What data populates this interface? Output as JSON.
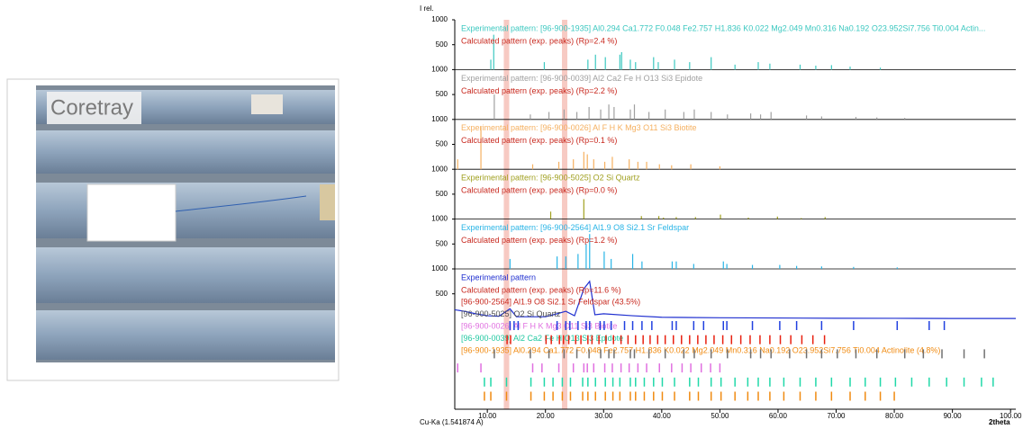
{
  "photo": {
    "label": "Coretray"
  },
  "chart_data": {
    "type": "xrd",
    "y_label": "I rel.",
    "x_label": "2theta",
    "source_label": "Cu-Ka (1.541874 A)",
    "xlim": [
      4.4,
      100.9
    ],
    "xticks": [
      {
        "value": 10,
        "label": "10.00"
      },
      {
        "value": 20,
        "label": "20.00"
      },
      {
        "value": 30,
        "label": "30.00"
      },
      {
        "value": 40,
        "label": "40.00"
      },
      {
        "value": 50,
        "label": "50.00"
      },
      {
        "value": 60,
        "label": "60.00"
      },
      {
        "value": 70,
        "label": "70.00"
      },
      {
        "value": 80,
        "label": "80.00"
      },
      {
        "value": 90,
        "label": "90.00"
      },
      {
        "value": 100,
        "label": "100.00"
      }
    ],
    "highlights": [
      13.3,
      23.3
    ],
    "highlight_color": "#f4b4aa",
    "panels": [
      {
        "exp_label": "Experimental pattern: [96-900-1935] Al0.294 Ca1.772 F0.048 Fe2.757 H1.836 K0.022 Mg2.049 Mn0.316 Na0.192 O23.952Si7.756 Ti0.004  Actin...",
        "exp_color": "#3cc8c0",
        "calc_label": "Calculated pattern (exp. peaks) (Rp=2.4 %)",
        "calc_color": "#c8281e",
        "ylim": [
          0,
          1000
        ],
        "yticks": [
          500,
          1000
        ],
        "peaks_x": [
          10.6,
          11.1,
          19.8,
          27.3,
          28.6,
          30.3,
          32.8,
          33.1,
          34.6,
          35.5,
          38.6,
          39.4,
          42.2,
          44.8,
          48.5,
          52.6,
          56.6,
          58.6,
          63.8,
          66.5,
          69.2,
          72.4,
          77.6
        ],
        "peaks_y": [
          200,
          700,
          150,
          200,
          300,
          250,
          300,
          350,
          200,
          150,
          250,
          150,
          200,
          150,
          250,
          100,
          150,
          120,
          100,
          80,
          90,
          60,
          40
        ]
      },
      {
        "exp_label": "Experimental pattern: [96-900-0039] Al2 Ca2 Fe H O13 Si3  Epidote",
        "exp_color": "#a0a0a0",
        "calc_label": "Calculated pattern (exp. peaks) (Rp=2.2 %)",
        "calc_color": "#c8281e",
        "ylim": [
          0,
          1000
        ],
        "yticks": [
          500,
          1000
        ],
        "peaks_x": [
          11.2,
          17.4,
          20.6,
          23.2,
          25.4,
          27.5,
          29.5,
          30.9,
          31.8,
          34.6,
          35.3,
          37.8,
          40.6,
          43.8,
          45.6,
          48.5,
          51.3,
          55.3,
          57.0,
          58.8,
          64.9,
          67.5,
          73.4,
          77.0,
          81.8
        ],
        "peaks_y": [
          500,
          100,
          150,
          200,
          150,
          250,
          200,
          300,
          250,
          200,
          300,
          150,
          200,
          150,
          200,
          150,
          100,
          120,
          100,
          150,
          80,
          60,
          50,
          40,
          30
        ]
      },
      {
        "exp_label": "Experimental pattern: [96-900-0026] Al F H K Mg3 O11 Si3  Biotite",
        "exp_color": "#f5b060",
        "calc_label": "Calculated pattern (exp. peaks) (Rp=0.1 %)",
        "calc_color": "#c8281e",
        "ylim": [
          0,
          1000
        ],
        "yticks": [
          500,
          1000
        ],
        "peaks_x": [
          4.9,
          8.9,
          17.8,
          22.3,
          24.8,
          26.6,
          27.2,
          28.3,
          30.2,
          31.5,
          34.4,
          35.9,
          37.4,
          39.6,
          41.7,
          45.0,
          50.0
        ],
        "peaks_y": [
          200,
          850,
          100,
          150,
          200,
          350,
          300,
          200,
          150,
          250,
          200,
          150,
          150,
          100,
          80,
          100,
          60
        ]
      },
      {
        "exp_label": "Experimental pattern: [96-900-5025] O2 Si  Quartz",
        "exp_color": "#a0a020",
        "calc_label": "Calculated pattern (exp. peaks) (Rp=0.0 %)",
        "calc_color": "#c8281e",
        "ylim": [
          0,
          1000
        ],
        "yticks": [
          500,
          1000
        ],
        "peaks_x": [
          20.9,
          26.6,
          36.5,
          39.5,
          40.3,
          42.5,
          45.8,
          50.1,
          54.9,
          59.9,
          64.0,
          68.1
        ],
        "peaks_y": [
          150,
          400,
          60,
          60,
          30,
          40,
          40,
          90,
          30,
          50,
          20,
          40
        ]
      },
      {
        "exp_label": "Experimental pattern: [96-900-2564] Al1.9 O8 Si2.1 Sr  Feldspar",
        "exp_color": "#28b4e6",
        "calc_label": "Calculated pattern (exp. peaks) (Rp=1.2 %)",
        "calc_color": "#c8281e",
        "ylim": [
          0,
          1000
        ],
        "yticks": [
          500,
          1000
        ],
        "peaks_x": [
          13.9,
          22.0,
          23.5,
          25.6,
          27.0,
          27.6,
          30.1,
          31.3,
          35.0,
          36.6,
          41.8,
          42.5,
          45.5,
          50.6,
          51.2,
          55.6,
          60.3,
          63.2,
          67.5,
          73.0,
          80.5
        ],
        "peaks_y": [
          200,
          250,
          250,
          300,
          500,
          700,
          350,
          200,
          300,
          150,
          150,
          150,
          100,
          150,
          100,
          80,
          80,
          60,
          50,
          40,
          30
        ]
      },
      {
        "exp_label": "Experimental pattern",
        "exp_color": "#2030d0",
        "calc_label": "Calculated pattern (exp. peaks) (Rp=11.6 %)",
        "calc_color": "#c8281e",
        "ylim": [
          0,
          1000
        ],
        "yticks": [
          500,
          1000
        ],
        "line_x": [
          4.4,
          6,
          8,
          10,
          12,
          13.9,
          15,
          20,
          22,
          23.5,
          25,
          26.6,
          27.6,
          28.5,
          30,
          35,
          40,
          50,
          60,
          70,
          80,
          90,
          100.9
        ],
        "line_y": [
          180,
          150,
          100,
          60,
          50,
          200,
          40,
          40,
          100,
          150,
          60,
          600,
          750,
          80,
          100,
          60,
          30,
          20,
          15,
          10,
          8,
          5,
          5
        ],
        "phases": [
          {
            "label": "[96-900-2564] Al1.9 O8 Si2.1 Sr  Feldspar (43.5%)",
            "color": "#c8281e"
          },
          {
            "label": "[96-900-5025] O2 Si  Quartz",
            "color": "#505050"
          },
          {
            "label": "[96-900-0026] Al F H K Mg3 O11 Si3  Biotite",
            "color": "#e070e0"
          },
          {
            "label": "[96-900-0039] Al2 Ca2 Fe H O13 Si3  Epidote",
            "color": "#20c8a0"
          },
          {
            "label": "[96-900-1935] Al0.294 Ca1.772 F0.048 Fe2.757 H1.836 K0.022 Mg2.049 Mn0.316 Na0.192 O23.952Si7.756 Ti0.004  Actinolite (4.8%)",
            "color": "#f08a10"
          }
        ]
      }
    ],
    "marker_rows": [
      {
        "color": "#2040e0",
        "x": [
          13.9,
          14.6,
          15.3,
          22.0,
          23.5,
          24.2,
          25.6,
          27.0,
          27.6,
          29.4,
          30.1,
          31.3,
          33.6,
          35.0,
          36.6,
          38.3,
          41.8,
          42.5,
          45.5,
          47.2,
          50.6,
          51.2,
          55.6,
          60.3,
          63.2,
          67.5,
          73.0,
          80.5,
          86.0,
          88.6
        ]
      },
      {
        "color": "#e82010",
        "x": [
          13.4,
          14.0,
          20.1,
          21.0,
          22.4,
          23.1,
          24.0,
          25.2,
          26.1,
          27.3,
          28.0,
          29.2,
          30.4,
          31.7,
          33.0,
          34.2,
          35.5,
          36.8,
          38.0,
          39.3,
          40.6,
          42.0,
          43.4,
          44.8,
          46.2,
          47.6,
          49.0,
          50.5,
          52.0,
          53.6,
          55.2,
          56.9,
          58.6,
          60.4,
          62.2,
          64.1,
          66.0,
          68.0
        ]
      },
      {
        "color": "#707070",
        "x": [
          11.2,
          17.4,
          20.6,
          23.2,
          25.4,
          27.5,
          29.5,
          30.9,
          31.8,
          34.6,
          35.3,
          37.8,
          40.6,
          43.8,
          45.6,
          48.5,
          51.3,
          55.3,
          57.0,
          58.8,
          62.0,
          64.9,
          67.5,
          70.2,
          73.4,
          77.0,
          81.8,
          85.0,
          88.2,
          92.0,
          95.5
        ]
      },
      {
        "color": "#e070e0",
        "x": [
          4.9,
          8.9,
          17.8,
          19.4,
          22.3,
          24.8,
          26.6,
          27.2,
          28.3,
          30.2,
          31.5,
          33.0,
          34.4,
          35.9,
          37.4,
          39.6,
          41.7,
          43.5,
          45.0,
          46.8,
          48.4,
          50.0
        ]
      },
      {
        "color": "#20d8a8",
        "x": [
          9.5,
          10.6,
          13.3,
          17.5,
          19.8,
          21.3,
          22.9,
          24.3,
          26.4,
          27.3,
          28.6,
          30.3,
          31.6,
          32.8,
          34.6,
          35.5,
          37.0,
          38.6,
          40.1,
          42.2,
          44.8,
          46.3,
          48.5,
          50.2,
          52.6,
          54.8,
          56.6,
          58.6,
          61.0,
          63.8,
          66.5,
          69.2,
          72.4,
          75.0,
          77.6,
          80.2,
          83.0,
          86.0,
          89.0,
          92.0,
          95.0,
          97.0
        ]
      },
      {
        "color": "#f08a10",
        "x": [
          9.5,
          10.6,
          13.3,
          17.5,
          19.8,
          21.3,
          22.9,
          24.3,
          26.4,
          27.3,
          28.6,
          30.3,
          31.6,
          32.8,
          34.6,
          35.5,
          37.0,
          38.6,
          40.1,
          42.2,
          44.8,
          46.3,
          48.5,
          50.2,
          52.6,
          54.8,
          56.6,
          58.6,
          61.0,
          63.8,
          66.5,
          69.2,
          72.4,
          75.0,
          77.6,
          80.0
        ]
      }
    ]
  }
}
